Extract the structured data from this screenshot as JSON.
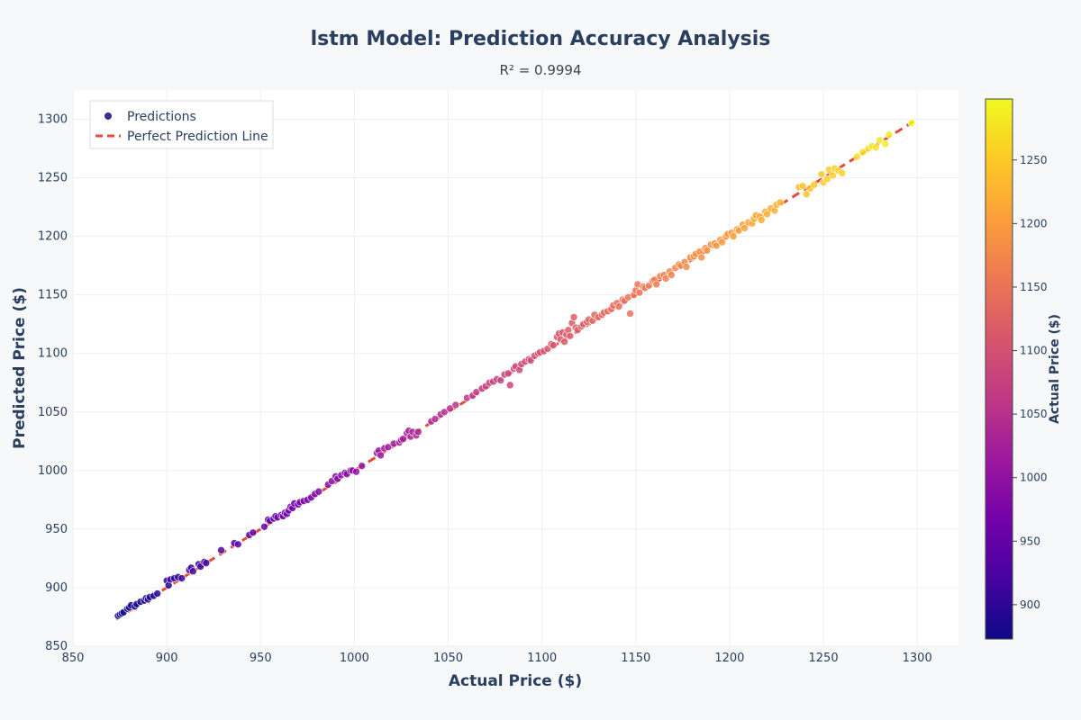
{
  "chart_data": {
    "type": "scatter",
    "title": "lstm Model: Prediction Accuracy Analysis",
    "subtitle": "R² = 0.9994",
    "xlabel": "Actual Price ($)",
    "ylabel": "Predicted Price ($)",
    "xlim": [
      850,
      1322
    ],
    "ylim": [
      850,
      1325
    ],
    "x_ticks": [
      "850",
      "900",
      "950",
      "1000",
      "1050",
      "1100",
      "1150",
      "1200",
      "1250",
      "1300"
    ],
    "y_ticks": [
      "850",
      "900",
      "950",
      "1000",
      "1050",
      "1100",
      "1150",
      "1200",
      "1250",
      "1300"
    ],
    "grid": true,
    "legend_position": "top-left",
    "colorbar": {
      "title": "Actual Price ($)",
      "range": [
        873,
        1298
      ],
      "ticks": [
        "900",
        "950",
        "1000",
        "1050",
        "1100",
        "1150",
        "1200",
        "1250"
      ],
      "colorscale": "plasma"
    },
    "series": [
      {
        "name": "Predictions",
        "kind": "markers",
        "points": [
          [
            874,
            876
          ],
          [
            875,
            877
          ],
          [
            876,
            878
          ],
          [
            877,
            879
          ],
          [
            879,
            882
          ],
          [
            880,
            883
          ],
          [
            881,
            885
          ],
          [
            883,
            884
          ],
          [
            884,
            886
          ],
          [
            886,
            888
          ],
          [
            888,
            889
          ],
          [
            889,
            891
          ],
          [
            890,
            890
          ],
          [
            891,
            892
          ],
          [
            893,
            893
          ],
          [
            895,
            895
          ],
          [
            900,
            906
          ],
          [
            901,
            902
          ],
          [
            902,
            907
          ],
          [
            904,
            908
          ],
          [
            906,
            909
          ],
          [
            908,
            908
          ],
          [
            912,
            915
          ],
          [
            913,
            917
          ],
          [
            914,
            914
          ],
          [
            917,
            920
          ],
          [
            918,
            918
          ],
          [
            920,
            922
          ],
          [
            921,
            921
          ],
          [
            929,
            932
          ],
          [
            936,
            938
          ],
          [
            938,
            937
          ],
          [
            944,
            945
          ],
          [
            946,
            947
          ],
          [
            952,
            952
          ],
          [
            954,
            958
          ],
          [
            955,
            957
          ],
          [
            957,
            959
          ],
          [
            958,
            961
          ],
          [
            959,
            960
          ],
          [
            961,
            962
          ],
          [
            962,
            961
          ],
          [
            963,
            964
          ],
          [
            964,
            963
          ],
          [
            965,
            966
          ],
          [
            966,
            969
          ],
          [
            967,
            968
          ],
          [
            968,
            972
          ],
          [
            970,
            971
          ],
          [
            971,
            973
          ],
          [
            973,
            974
          ],
          [
            975,
            975
          ],
          [
            977,
            977
          ],
          [
            979,
            980
          ],
          [
            981,
            982
          ],
          [
            986,
            988
          ],
          [
            988,
            991
          ],
          [
            990,
            995
          ],
          [
            991,
            993
          ],
          [
            993,
            996
          ],
          [
            995,
            998
          ],
          [
            996,
            997
          ],
          [
            998,
            1000
          ],
          [
            999,
            1000
          ],
          [
            1001,
            999
          ],
          [
            1004,
            1004
          ],
          [
            1012,
            1015
          ],
          [
            1013,
            1017
          ],
          [
            1014,
            1013
          ],
          [
            1016,
            1019
          ],
          [
            1018,
            1020
          ],
          [
            1021,
            1023
          ],
          [
            1024,
            1024
          ],
          [
            1025,
            1026
          ],
          [
            1026,
            1027
          ],
          [
            1028,
            1032
          ],
          [
            1029,
            1034
          ],
          [
            1030,
            1029
          ],
          [
            1031,
            1033
          ],
          [
            1033,
            1030
          ],
          [
            1034,
            1033
          ],
          [
            1041,
            1042
          ],
          [
            1043,
            1044
          ],
          [
            1046,
            1048
          ],
          [
            1048,
            1050
          ],
          [
            1051,
            1053
          ],
          [
            1054,
            1056
          ],
          [
            1060,
            1062
          ],
          [
            1063,
            1064
          ],
          [
            1065,
            1067
          ],
          [
            1068,
            1070
          ],
          [
            1070,
            1072
          ],
          [
            1072,
            1075
          ],
          [
            1074,
            1076
          ],
          [
            1076,
            1078
          ],
          [
            1078,
            1077
          ],
          [
            1080,
            1082
          ],
          [
            1082,
            1083
          ],
          [
            1083,
            1073
          ],
          [
            1085,
            1087
          ],
          [
            1086,
            1089
          ],
          [
            1088,
            1086
          ],
          [
            1089,
            1091
          ],
          [
            1091,
            1093
          ],
          [
            1093,
            1095
          ],
          [
            1094,
            1094
          ],
          [
            1096,
            1098
          ],
          [
            1098,
            1100
          ],
          [
            1099,
            1101
          ],
          [
            1101,
            1102
          ],
          [
            1103,
            1104
          ],
          [
            1105,
            1108
          ],
          [
            1106,
            1107
          ],
          [
            1108,
            1114
          ],
          [
            1109,
            1117
          ],
          [
            1110,
            1112
          ],
          [
            1111,
            1118
          ],
          [
            1112,
            1110
          ],
          [
            1113,
            1116
          ],
          [
            1114,
            1120
          ],
          [
            1115,
            1115
          ],
          [
            1116,
            1126
          ],
          [
            1117,
            1131
          ],
          [
            1118,
            1122
          ],
          [
            1119,
            1120
          ],
          [
            1121,
            1123
          ],
          [
            1122,
            1125
          ],
          [
            1124,
            1127
          ],
          [
            1125,
            1129
          ],
          [
            1127,
            1128
          ],
          [
            1128,
            1133
          ],
          [
            1130,
            1131
          ],
          [
            1132,
            1133
          ],
          [
            1133,
            1135
          ],
          [
            1135,
            1136
          ],
          [
            1137,
            1138
          ],
          [
            1138,
            1141
          ],
          [
            1140,
            1143
          ],
          [
            1141,
            1140
          ],
          [
            1143,
            1146
          ],
          [
            1144,
            1145
          ],
          [
            1146,
            1148
          ],
          [
            1147,
            1134
          ],
          [
            1149,
            1150
          ],
          [
            1150,
            1154
          ],
          [
            1151,
            1159
          ],
          [
            1152,
            1152
          ],
          [
            1154,
            1157
          ],
          [
            1155,
            1156
          ],
          [
            1157,
            1158
          ],
          [
            1159,
            1162
          ],
          [
            1160,
            1163
          ],
          [
            1161,
            1159
          ],
          [
            1163,
            1166
          ],
          [
            1165,
            1167
          ],
          [
            1166,
            1164
          ],
          [
            1168,
            1170
          ],
          [
            1169,
            1167
          ],
          [
            1171,
            1173
          ],
          [
            1173,
            1176
          ],
          [
            1174,
            1175
          ],
          [
            1176,
            1178
          ],
          [
            1177,
            1174
          ],
          [
            1179,
            1182
          ],
          [
            1181,
            1183
          ],
          [
            1182,
            1185
          ],
          [
            1184,
            1187
          ],
          [
            1185,
            1182
          ],
          [
            1187,
            1190
          ],
          [
            1188,
            1188
          ],
          [
            1190,
            1193
          ],
          [
            1192,
            1194
          ],
          [
            1193,
            1192
          ],
          [
            1195,
            1197
          ],
          [
            1196,
            1195
          ],
          [
            1198,
            1200
          ],
          [
            1199,
            1202
          ],
          [
            1201,
            1203
          ],
          [
            1202,
            1200
          ],
          [
            1204,
            1206
          ],
          [
            1205,
            1205
          ],
          [
            1207,
            1210
          ],
          [
            1208,
            1207
          ],
          [
            1210,
            1212
          ],
          [
            1212,
            1211
          ],
          [
            1213,
            1215
          ],
          [
            1214,
            1218
          ],
          [
            1216,
            1217
          ],
          [
            1217,
            1214
          ],
          [
            1219,
            1221
          ],
          [
            1220,
            1219
          ],
          [
            1222,
            1224
          ],
          [
            1224,
            1222
          ],
          [
            1225,
            1227
          ],
          [
            1227,
            1229
          ],
          [
            1237,
            1242
          ],
          [
            1239,
            1243
          ],
          [
            1241,
            1236
          ],
          [
            1243,
            1241
          ],
          [
            1245,
            1244
          ],
          [
            1249,
            1253
          ],
          [
            1250,
            1246
          ],
          [
            1252,
            1249
          ],
          [
            1253,
            1257
          ],
          [
            1255,
            1252
          ],
          [
            1256,
            1258
          ],
          [
            1258,
            1256
          ],
          [
            1260,
            1254
          ],
          [
            1268,
            1268
          ],
          [
            1271,
            1272
          ],
          [
            1274,
            1275
          ],
          [
            1276,
            1277
          ],
          [
            1278,
            1276
          ],
          [
            1280,
            1282
          ],
          [
            1283,
            1279
          ],
          [
            1285,
            1287
          ],
          [
            1297,
            1297
          ]
        ]
      },
      {
        "name": "Perfect Prediction Line",
        "kind": "line",
        "x": [
          873,
          1298
        ],
        "y": [
          873,
          1298
        ],
        "color": "#e84a3a"
      }
    ]
  }
}
